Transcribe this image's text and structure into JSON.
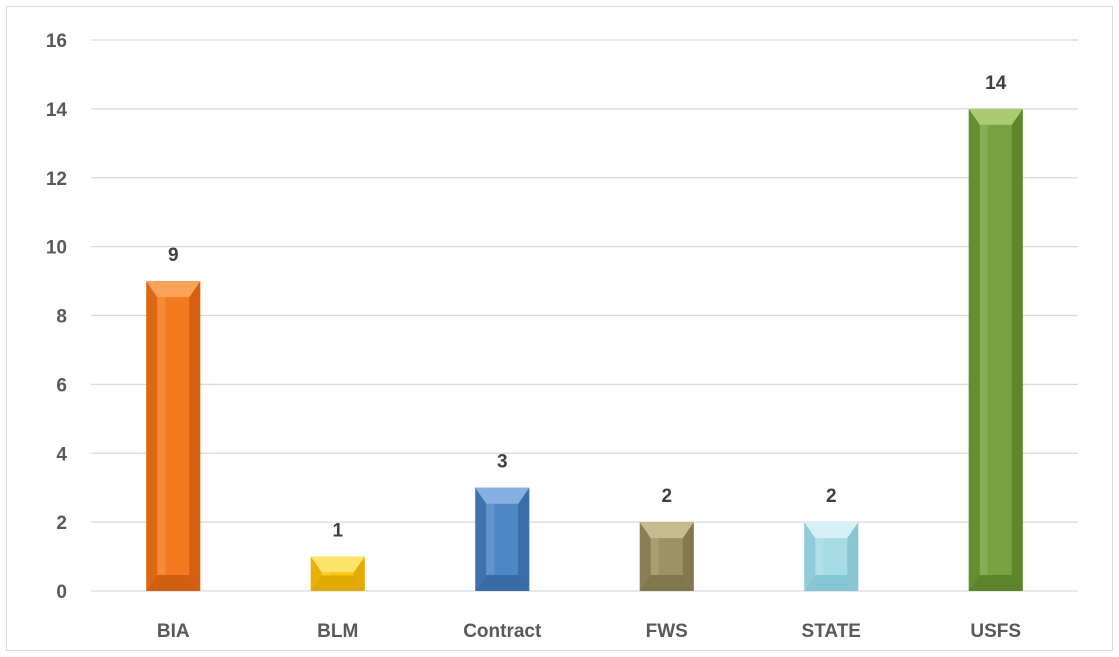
{
  "chart_data": {
    "type": "bar",
    "title": "",
    "xlabel": "",
    "ylabel": "",
    "categories": [
      "BIA",
      "BLM",
      "Contract",
      "FWS",
      "STATE",
      "USFS"
    ],
    "values": [
      9,
      1,
      3,
      2,
      2,
      14
    ],
    "data_labels": [
      "9",
      "1",
      "3",
      "2",
      "2",
      "14"
    ],
    "ylim": [
      0,
      16
    ],
    "yticks": [
      "0",
      "2",
      "4",
      "6",
      "8",
      "10",
      "12",
      "14",
      "16"
    ],
    "grid": true,
    "legend": "none",
    "bar_colors": [
      {
        "base": "#f47a20",
        "light": "#fba35a",
        "dark": "#c8590c"
      },
      {
        "base": "#fbc612",
        "light": "#fee36a",
        "dark": "#d9a300"
      },
      {
        "base": "#4f86c6",
        "light": "#86b0df",
        "dark": "#33649f"
      },
      {
        "base": "#9e9264",
        "light": "#c5bb8c",
        "dark": "#7a6f47"
      },
      {
        "base": "#a7dbe6",
        "light": "#d6f0f5",
        "dark": "#7ebfcf"
      },
      {
        "base": "#76a33f",
        "light": "#a9cc72",
        "dark": "#567d26"
      }
    ]
  }
}
